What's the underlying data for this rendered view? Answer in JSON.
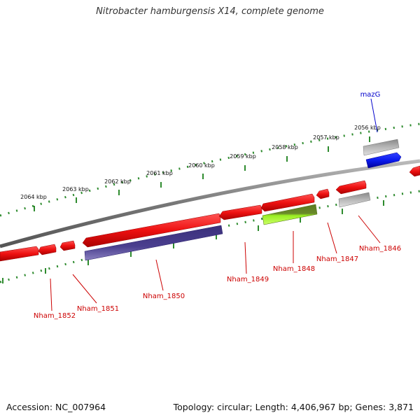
{
  "title": "Nitrobacter hamburgensis X14, complete genome",
  "accession_label": "Accession:",
  "accession": "NC_007964",
  "summary": "Topology: circular; Length: 4,406,967 bp; Genes: 3,871",
  "colors": {
    "backbone": "#8a8a8a",
    "tick": "#2e8b2e",
    "gene_label": "#cc0000",
    "highlight_label": "#0000cc",
    "forward_gene": "#ee1111",
    "purple_gene": "#4a3f8f",
    "green_gene_dark": "#6a8a2a",
    "green_gene_light": "#aaff33",
    "gray_gene": "#b8b8b8",
    "blue_gene": "#0a1aee"
  },
  "kbp_labels": [
    "2064 kbp",
    "2063 kbp",
    "2062 kbp",
    "2061 kbp",
    "2060 kbp",
    "2059 kbp",
    "2058 kbp",
    "2057 kbp",
    "2056 kbp"
  ],
  "genes": [
    {
      "label": "Nham_1852"
    },
    {
      "label": "Nham_1851"
    },
    {
      "label": "Nham_1850"
    },
    {
      "label": "Nham_1849"
    },
    {
      "label": "Nham_1848"
    },
    {
      "label": "Nham_1847"
    },
    {
      "label": "Nham_1846"
    },
    {
      "label": "mazG"
    }
  ]
}
